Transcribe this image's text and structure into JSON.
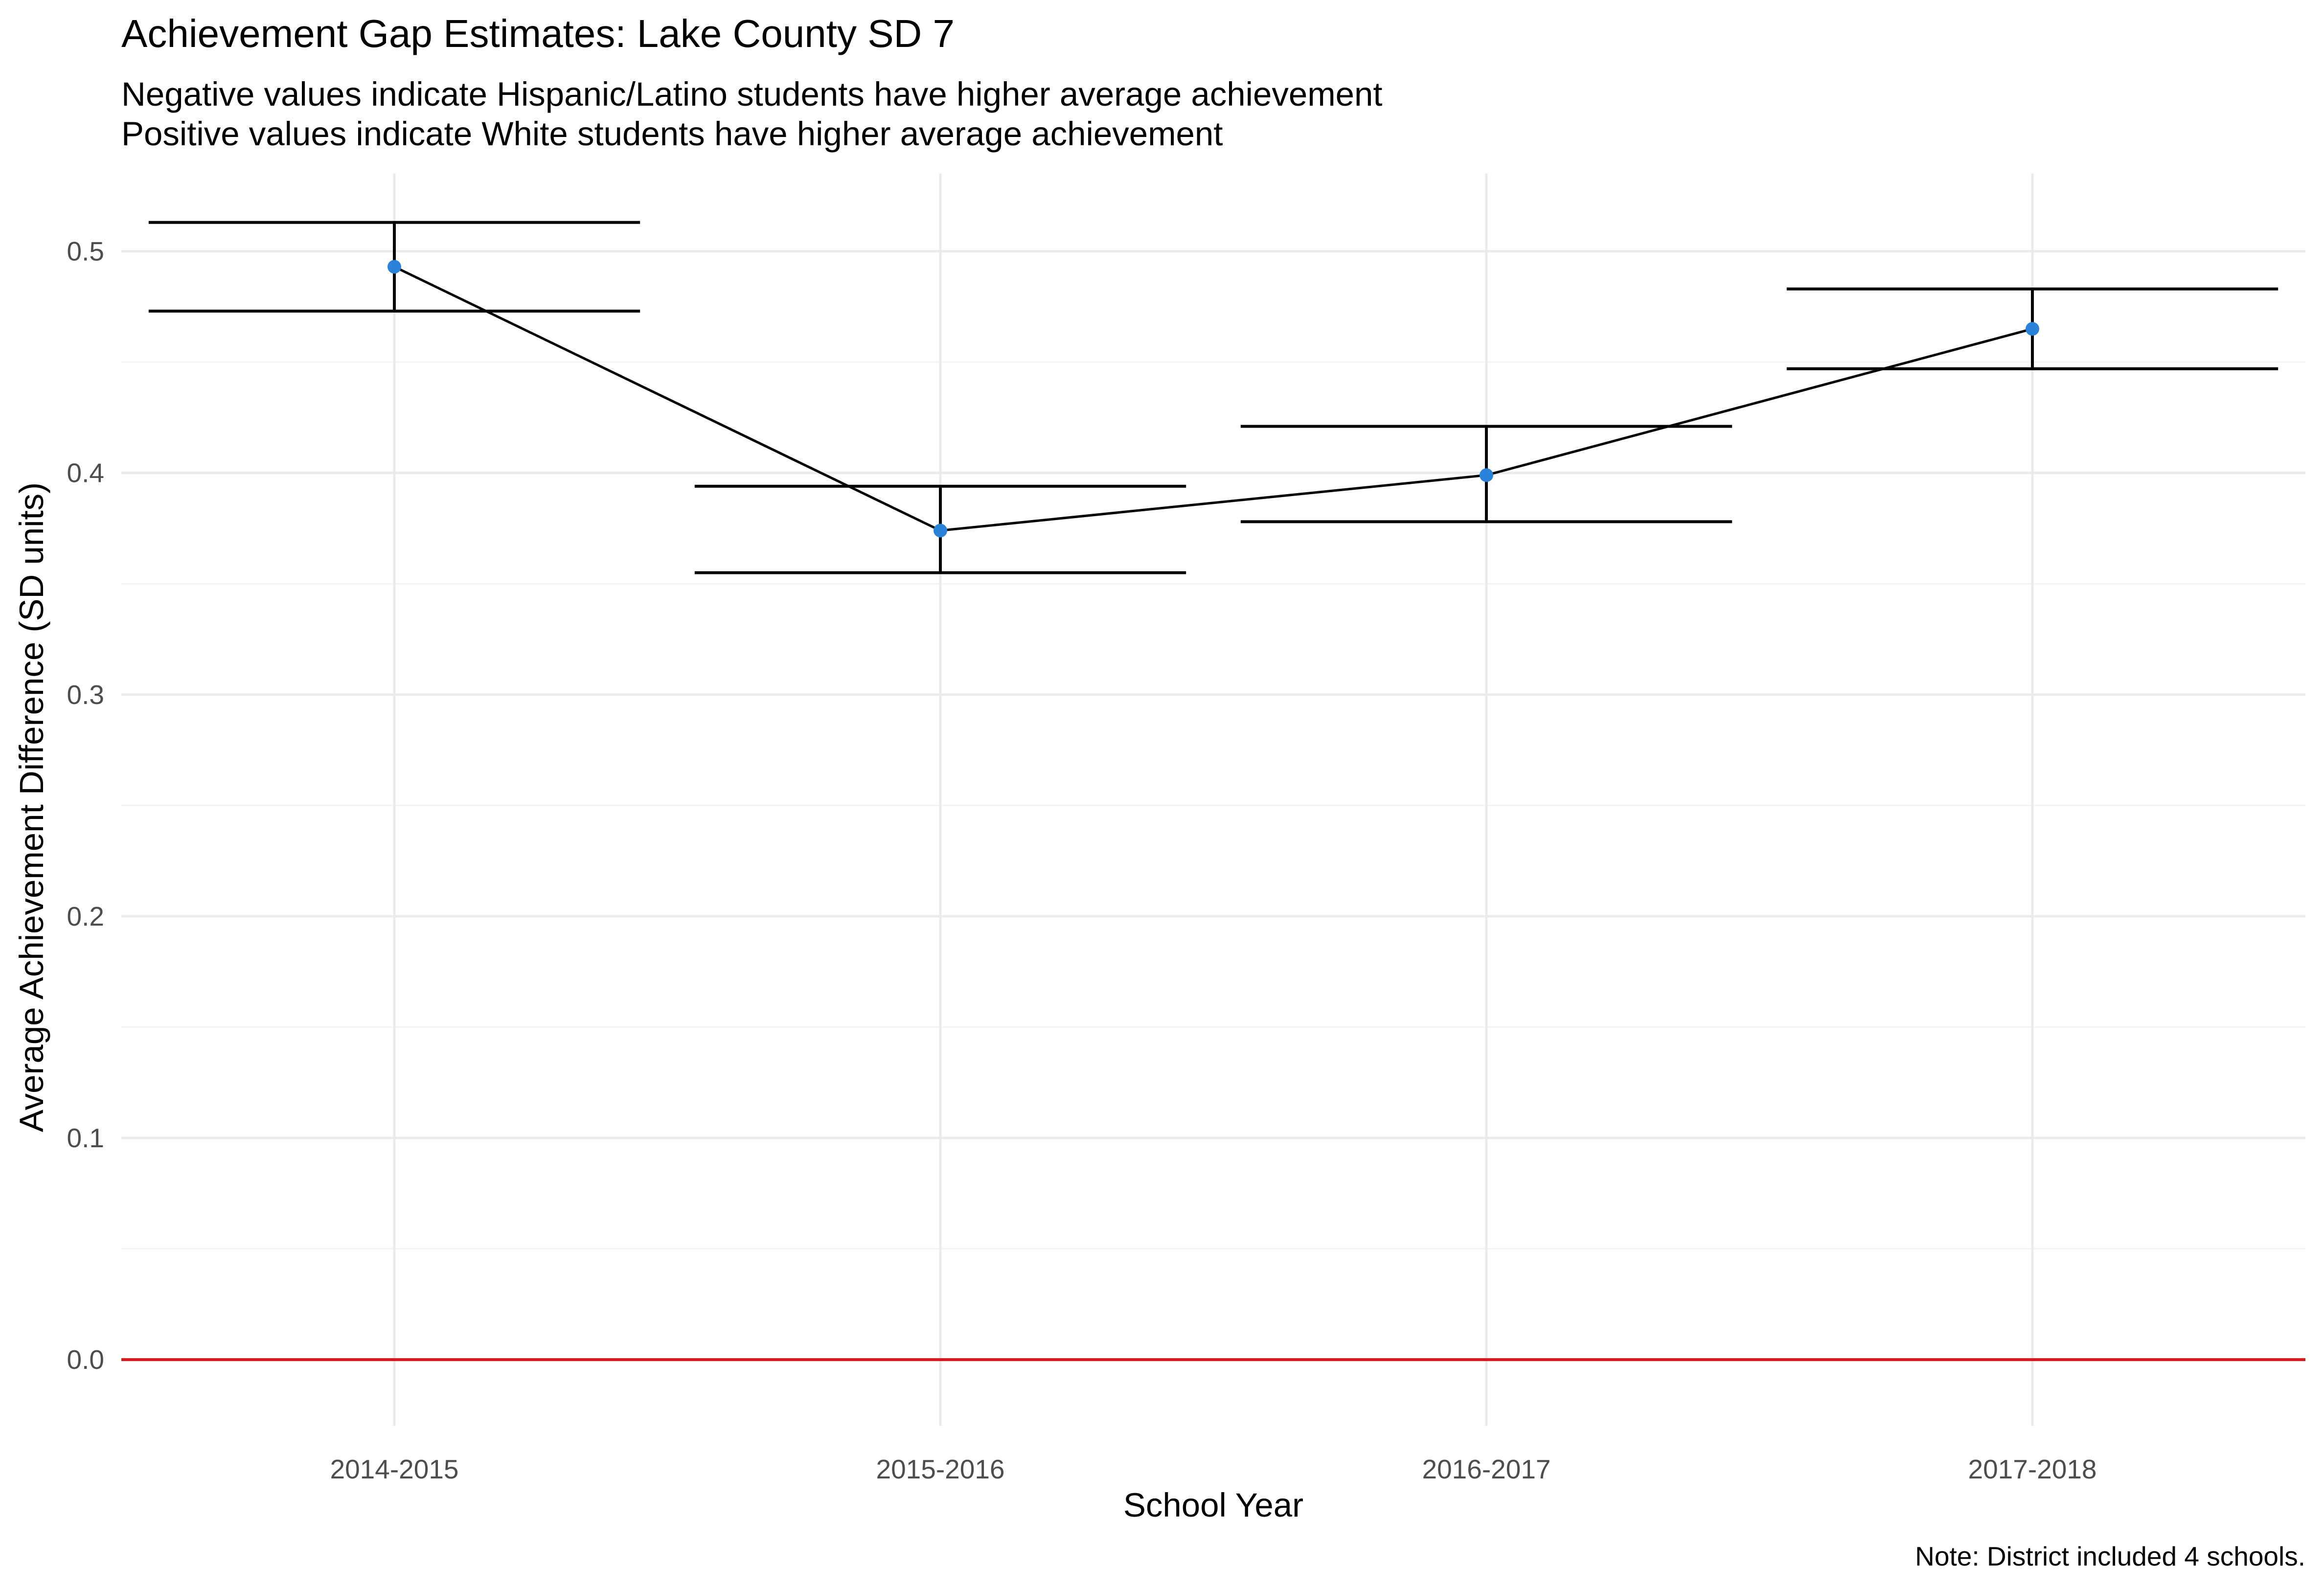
{
  "chart_data": {
    "type": "line",
    "title": "Achievement Gap Estimates: Lake County SD 7",
    "subtitle_lines": [
      "Negative values indicate Hispanic/Latino students have higher average achievement",
      "Positive values indicate White students have higher average achievement"
    ],
    "xlabel": "School Year",
    "ylabel": "Average Achievement Difference (SD units)",
    "caption": "Note: District included 4 schools.",
    "categories": [
      "2014-2015",
      "2015-2016",
      "2016-2017",
      "2017-2018"
    ],
    "series": [
      {
        "values": [
          0.493,
          0.374,
          0.399,
          0.465
        ],
        "lower": [
          0.473,
          0.355,
          0.378,
          0.447
        ],
        "upper": [
          0.513,
          0.394,
          0.421,
          0.483
        ]
      }
    ],
    "reference_line": {
      "y": 0.0,
      "color": "#d7191c"
    },
    "point_color": "#2b83d9",
    "ylim": [
      -0.03,
      0.535
    ],
    "yticks": [
      0.0,
      0.1,
      0.2,
      0.3,
      0.4,
      0.5
    ],
    "ytick_labels": [
      "0.0",
      "0.1",
      "0.2",
      "0.3",
      "0.4",
      "0.5"
    ],
    "grid": true,
    "legend": "none"
  }
}
